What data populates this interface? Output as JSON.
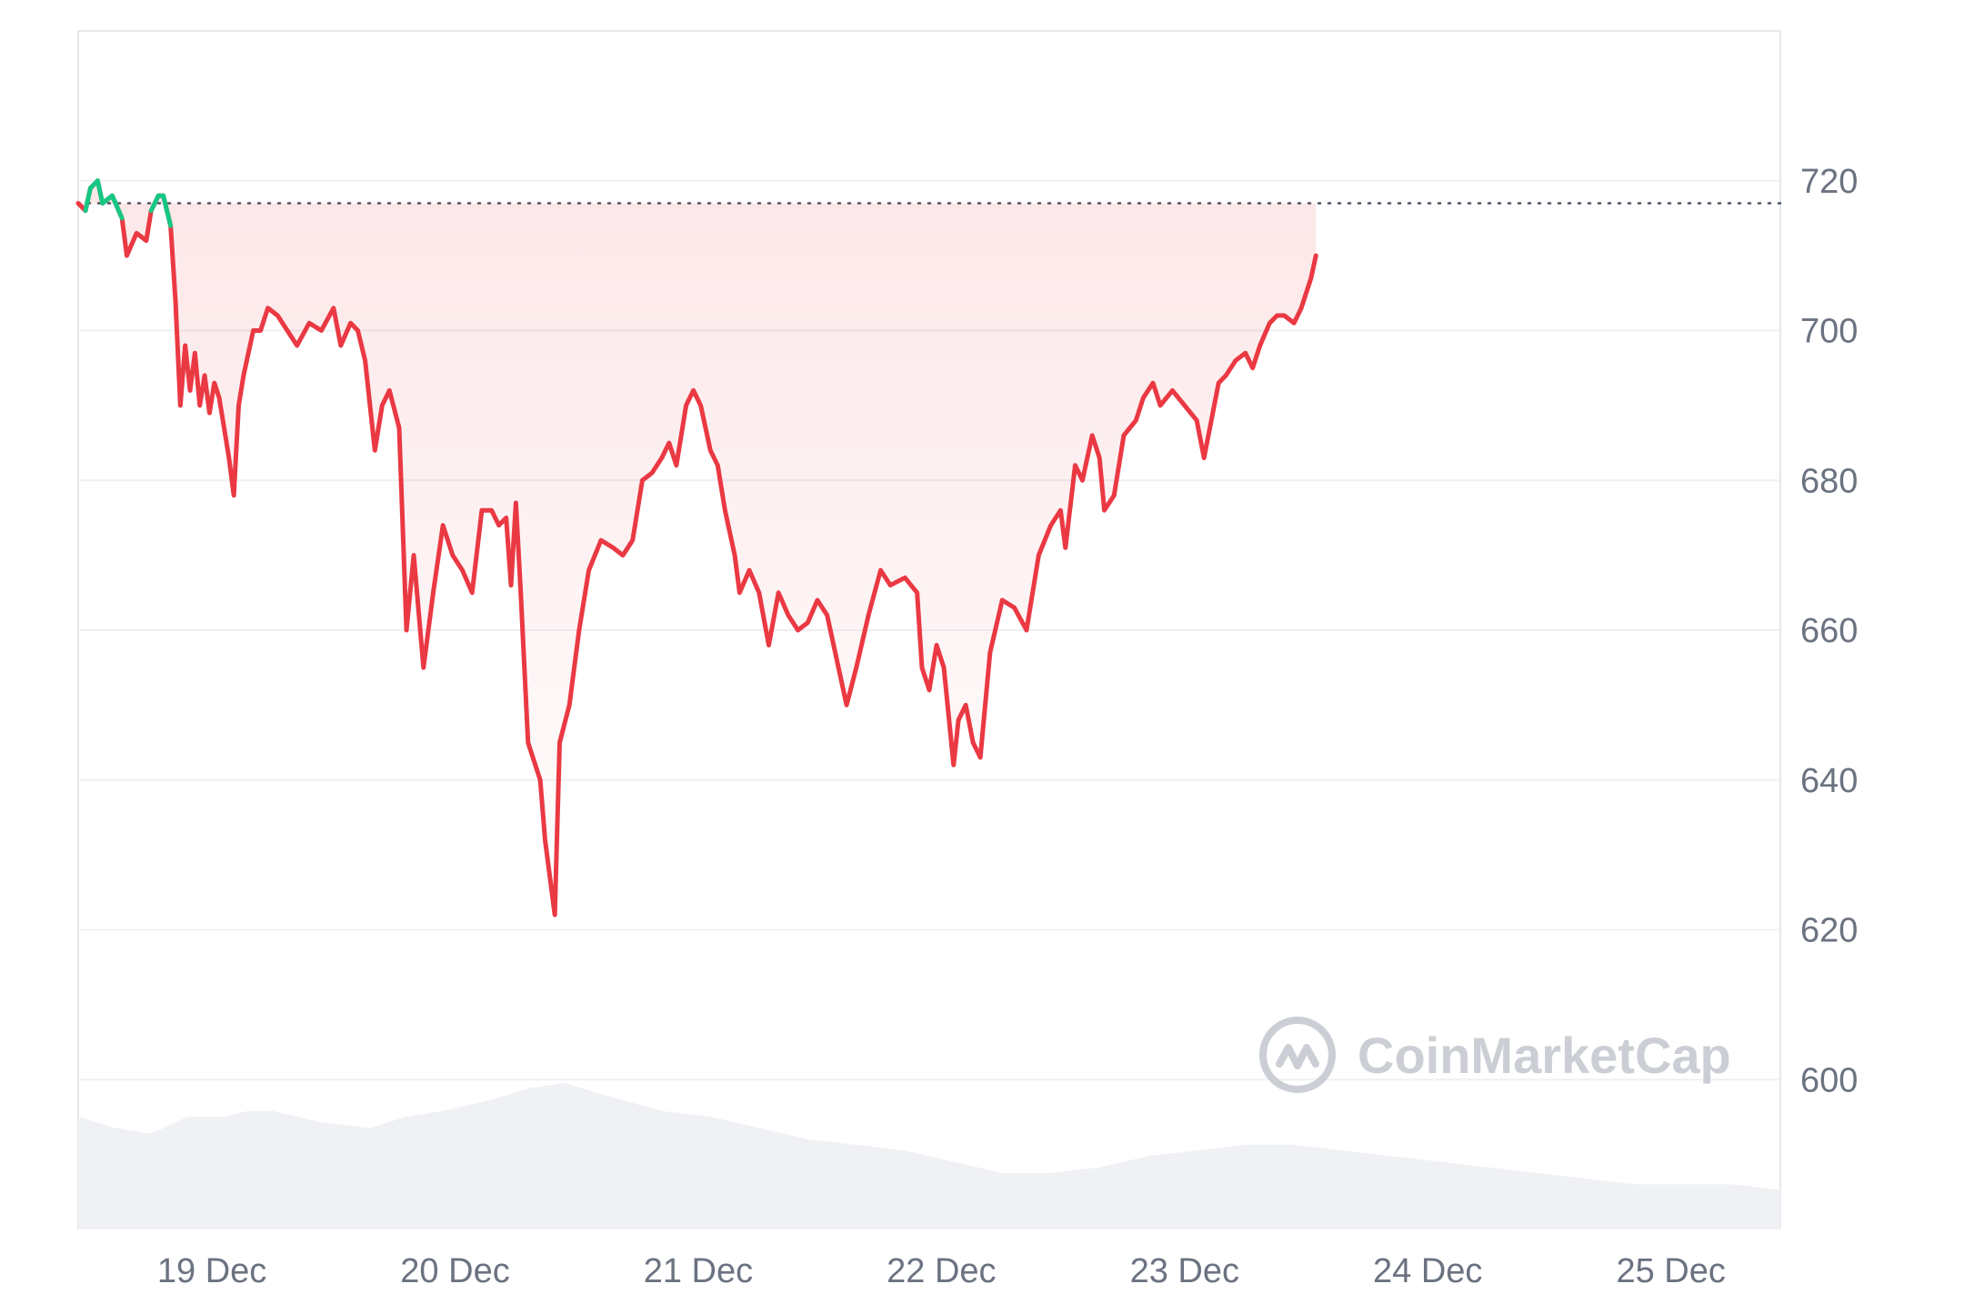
{
  "chart_data": {
    "type": "line",
    "title": "",
    "xlabel": "",
    "ylabel": "",
    "ylim": [
      580,
      740
    ],
    "y_ticks": [
      600,
      620,
      640,
      660,
      680,
      700,
      720
    ],
    "x_ticks": [
      {
        "label": "19 Dec",
        "x": 1.55
      },
      {
        "label": "20 Dec",
        "x": 2.55
      },
      {
        "label": "21 Dec",
        "x": 3.55
      },
      {
        "label": "22 Dec",
        "x": 4.55
      },
      {
        "label": "23 Dec",
        "x": 5.55
      },
      {
        "label": "24 Dec",
        "x": 6.55
      },
      {
        "label": "25 Dec",
        "x": 7.55
      }
    ],
    "x_range": [
      1,
      8
    ],
    "reference_price": 717,
    "grid": true,
    "colors": {
      "below": "#ea3943",
      "above": "#16c784",
      "grid": "#eff0f2",
      "volume": "#eff1f4",
      "watermark": "#c9ccd2"
    },
    "series": [
      {
        "values": [
          [
            1.0,
            717
          ],
          [
            1.03,
            716
          ],
          [
            1.05,
            719
          ],
          [
            1.08,
            720
          ],
          [
            1.1,
            717
          ],
          [
            1.14,
            718
          ],
          [
            1.18,
            715
          ],
          [
            1.2,
            710
          ],
          [
            1.24,
            713
          ],
          [
            1.28,
            712
          ],
          [
            1.3,
            716
          ],
          [
            1.33,
            718
          ],
          [
            1.35,
            718
          ],
          [
            1.38,
            714
          ],
          [
            1.4,
            704
          ],
          [
            1.42,
            690
          ],
          [
            1.44,
            698
          ],
          [
            1.46,
            692
          ],
          [
            1.48,
            697
          ],
          [
            1.5,
            690
          ],
          [
            1.52,
            694
          ],
          [
            1.54,
            689
          ],
          [
            1.56,
            693
          ],
          [
            1.58,
            691
          ],
          [
            1.62,
            683
          ],
          [
            1.64,
            678
          ],
          [
            1.66,
            690
          ],
          [
            1.68,
            694
          ],
          [
            1.72,
            700
          ],
          [
            1.75,
            700
          ],
          [
            1.78,
            703
          ],
          [
            1.82,
            702
          ],
          [
            1.86,
            700
          ],
          [
            1.9,
            698
          ],
          [
            1.95,
            701
          ],
          [
            2.0,
            700
          ],
          [
            2.05,
            703
          ],
          [
            2.08,
            698
          ],
          [
            2.12,
            701
          ],
          [
            2.15,
            700
          ],
          [
            2.18,
            696
          ],
          [
            2.2,
            690
          ],
          [
            2.22,
            684
          ],
          [
            2.25,
            690
          ],
          [
            2.28,
            692
          ],
          [
            2.32,
            687
          ],
          [
            2.35,
            660
          ],
          [
            2.38,
            670
          ],
          [
            2.42,
            655
          ],
          [
            2.46,
            665
          ],
          [
            2.5,
            674
          ],
          [
            2.54,
            670
          ],
          [
            2.58,
            668
          ],
          [
            2.62,
            665
          ],
          [
            2.66,
            676
          ],
          [
            2.7,
            676
          ],
          [
            2.73,
            674
          ],
          [
            2.76,
            675
          ],
          [
            2.78,
            666
          ],
          [
            2.8,
            677
          ],
          [
            2.82,
            665
          ],
          [
            2.85,
            645
          ],
          [
            2.9,
            640
          ],
          [
            2.92,
            632
          ],
          [
            2.96,
            622
          ],
          [
            2.98,
            645
          ],
          [
            3.02,
            650
          ],
          [
            3.06,
            660
          ],
          [
            3.1,
            668
          ],
          [
            3.15,
            672
          ],
          [
            3.2,
            671
          ],
          [
            3.24,
            670
          ],
          [
            3.28,
            672
          ],
          [
            3.32,
            680
          ],
          [
            3.36,
            681
          ],
          [
            3.4,
            683
          ],
          [
            3.43,
            685
          ],
          [
            3.46,
            682
          ],
          [
            3.5,
            690
          ],
          [
            3.53,
            692
          ],
          [
            3.56,
            690
          ],
          [
            3.6,
            684
          ],
          [
            3.63,
            682
          ],
          [
            3.66,
            676
          ],
          [
            3.7,
            670
          ],
          [
            3.72,
            665
          ],
          [
            3.76,
            668
          ],
          [
            3.8,
            665
          ],
          [
            3.84,
            658
          ],
          [
            3.88,
            665
          ],
          [
            3.92,
            662
          ],
          [
            3.96,
            660
          ],
          [
            4.0,
            661
          ],
          [
            4.04,
            664
          ],
          [
            4.08,
            662
          ],
          [
            4.12,
            656
          ],
          [
            4.16,
            650
          ],
          [
            4.2,
            655
          ],
          [
            4.25,
            662
          ],
          [
            4.3,
            668
          ],
          [
            4.34,
            666
          ],
          [
            4.4,
            667
          ],
          [
            4.45,
            665
          ],
          [
            4.47,
            655
          ],
          [
            4.5,
            652
          ],
          [
            4.53,
            658
          ],
          [
            4.56,
            655
          ],
          [
            4.6,
            642
          ],
          [
            4.62,
            648
          ],
          [
            4.65,
            650
          ],
          [
            4.68,
            645
          ],
          [
            4.71,
            643
          ],
          [
            4.75,
            657
          ],
          [
            4.8,
            664
          ],
          [
            4.85,
            663
          ],
          [
            4.9,
            660
          ],
          [
            4.95,
            670
          ],
          [
            5.0,
            674
          ],
          [
            5.04,
            676
          ],
          [
            5.06,
            671
          ],
          [
            5.1,
            682
          ],
          [
            5.13,
            680
          ],
          [
            5.17,
            686
          ],
          [
            5.2,
            683
          ],
          [
            5.22,
            676
          ],
          [
            5.26,
            678
          ],
          [
            5.3,
            686
          ],
          [
            5.35,
            688
          ],
          [
            5.38,
            691
          ],
          [
            5.42,
            693
          ],
          [
            5.45,
            690
          ],
          [
            5.5,
            692
          ],
          [
            5.55,
            690
          ],
          [
            5.6,
            688
          ],
          [
            5.63,
            683
          ],
          [
            5.66,
            688
          ],
          [
            5.69,
            693
          ],
          [
            5.72,
            694
          ],
          [
            5.76,
            696
          ],
          [
            5.8,
            697
          ],
          [
            5.83,
            695
          ],
          [
            5.86,
            698
          ],
          [
            5.9,
            701
          ],
          [
            5.93,
            702
          ],
          [
            5.96,
            702
          ],
          [
            6.0,
            701
          ],
          [
            6.03,
            703
          ],
          [
            6.05,
            705
          ],
          [
            6.07,
            707
          ],
          [
            6.09,
            710
          ]
        ]
      }
    ],
    "volume": [
      [
        1.0,
        20
      ],
      [
        1.15,
        18
      ],
      [
        1.3,
        17
      ],
      [
        1.45,
        20
      ],
      [
        1.6,
        20
      ],
      [
        1.7,
        21
      ],
      [
        1.8,
        21
      ],
      [
        2.0,
        19
      ],
      [
        2.2,
        18
      ],
      [
        2.35,
        20
      ],
      [
        2.5,
        21
      ],
      [
        2.7,
        23
      ],
      [
        2.85,
        25
      ],
      [
        3.0,
        26
      ],
      [
        3.15,
        24
      ],
      [
        3.4,
        21
      ],
      [
        3.6,
        20
      ],
      [
        3.8,
        18
      ],
      [
        4.0,
        16
      ],
      [
        4.2,
        15
      ],
      [
        4.4,
        14
      ],
      [
        4.5,
        13
      ],
      [
        4.6,
        12
      ],
      [
        4.7,
        11
      ],
      [
        4.8,
        10
      ],
      [
        5.0,
        10
      ],
      [
        5.2,
        11
      ],
      [
        5.4,
        13
      ],
      [
        5.6,
        14
      ],
      [
        5.8,
        15
      ],
      [
        6.0,
        15
      ],
      [
        6.2,
        14
      ],
      [
        6.4,
        13
      ],
      [
        6.6,
        12
      ],
      [
        6.8,
        11
      ],
      [
        7.0,
        10
      ],
      [
        7.2,
        9
      ],
      [
        7.4,
        8
      ],
      [
        7.6,
        8
      ],
      [
        7.8,
        8
      ],
      [
        8.0,
        7
      ]
    ]
  },
  "watermark": {
    "brand": "CoinMarketCap",
    "logo_icon": "coinmarketcap-logo-icon"
  }
}
